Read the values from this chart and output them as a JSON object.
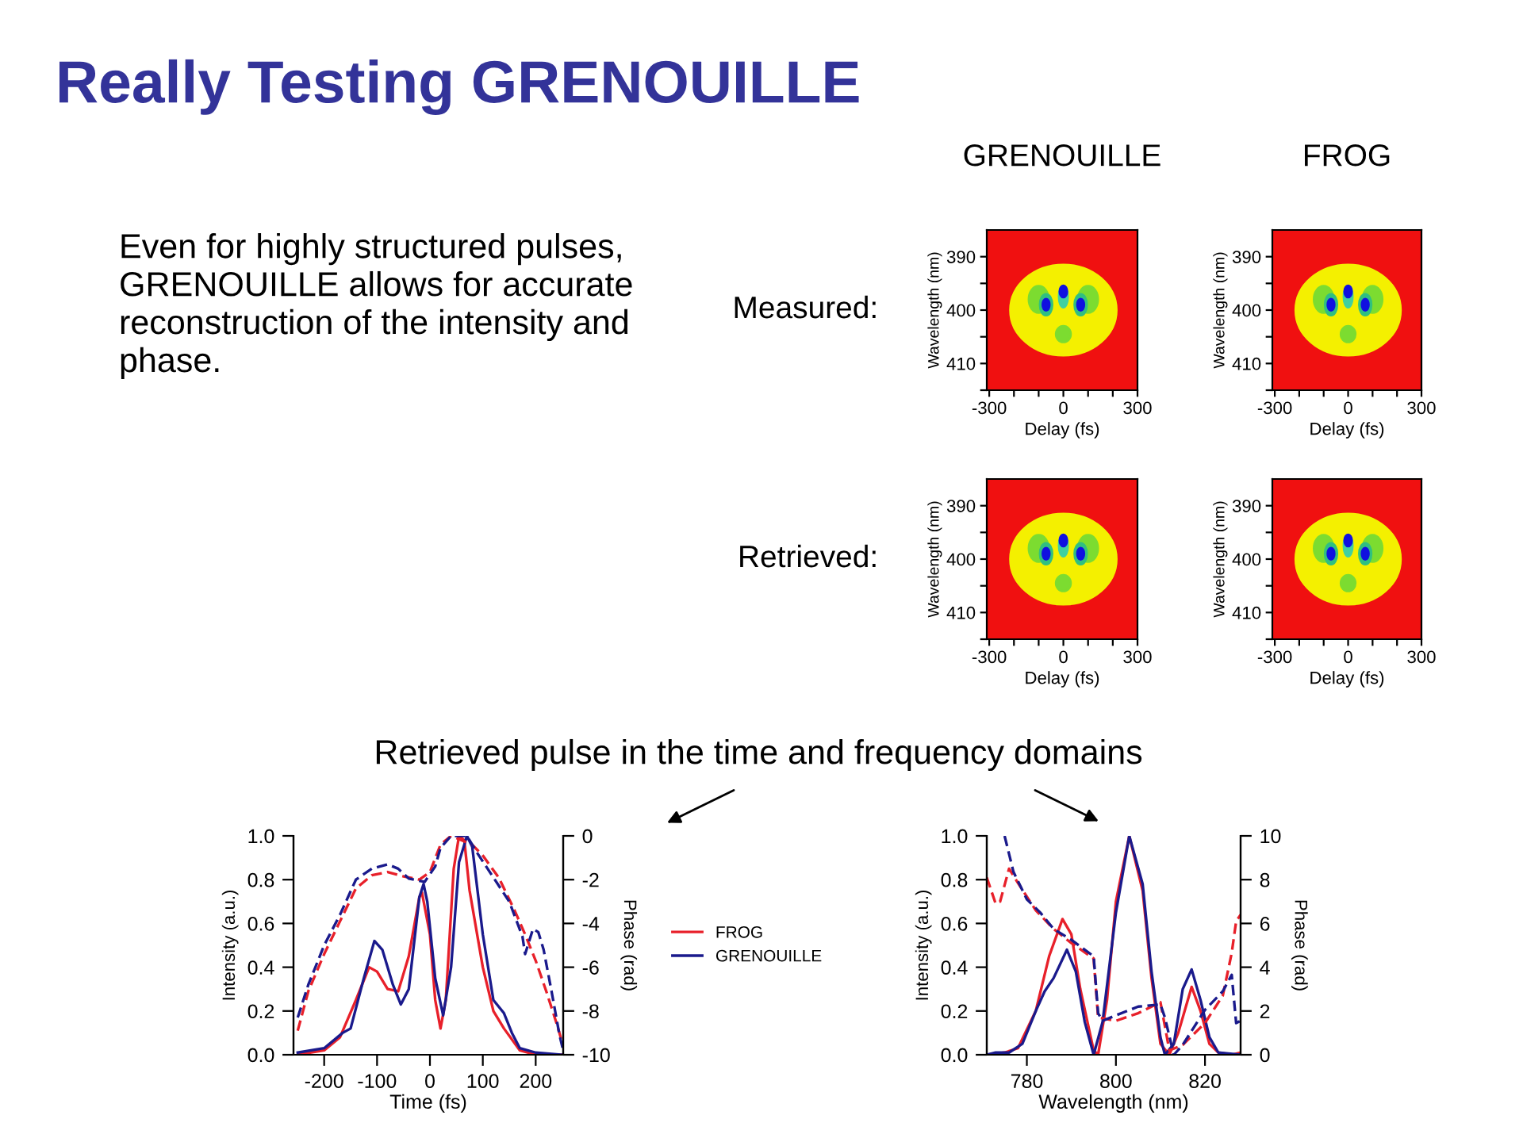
{
  "chart_data": [
    {
      "type": "other",
      "title": "Really Testing GRENOUILLE",
      "annotations": [
        "Even for highly structured pulses, GRENOUILLE allows for accurate reconstruction of the intensity and phase.",
        "Retrieved pulse in the time and frequency domains"
      ]
    },
    {
      "type": "heatmap",
      "title": "GRENOUILLE",
      "annotations": [
        "Measured:"
      ],
      "xlabel": "Delay (fs)",
      "ylabel": "Wavelength (nm)",
      "xlim": [
        -310,
        300
      ],
      "ylim": [
        415,
        385
      ],
      "xticks": [
        -300,
        {
          "value": -200,
          "label": null
        },
        {
          "value": -100,
          "label": null
        },
        0,
        {
          "value": 100,
          "label": null
        },
        {
          "value": 200,
          "label": null
        },
        300
      ],
      "yticks": [
        390,
        {
          "value": 395,
          "label": null
        },
        400,
        {
          "value": 405,
          "label": null
        },
        410,
        {
          "value": 415,
          "label": null
        }
      ]
    },
    {
      "type": "heatmap",
      "title": "FROG",
      "xlabel": "Delay (fs)",
      "ylabel": "Wavelength (nm)",
      "xlim": [
        -310,
        300
      ],
      "ylim": [
        415,
        385
      ],
      "xticks": [
        -300,
        {
          "value": -200,
          "label": null
        },
        {
          "value": -100,
          "label": null
        },
        0,
        {
          "value": 100,
          "label": null
        },
        {
          "value": 200,
          "label": null
        },
        300
      ],
      "yticks": [
        390,
        {
          "value": 395,
          "label": null
        },
        400,
        {
          "value": 405,
          "label": null
        },
        410,
        {
          "value": 415,
          "label": null
        }
      ]
    },
    {
      "type": "heatmap",
      "annotations": [
        "Retrieved:"
      ],
      "xlabel": "Delay (fs)",
      "ylabel": "Wavelength (nm)",
      "xlim": [
        -310,
        300
      ],
      "ylim": [
        415,
        385
      ],
      "xticks": [
        -300,
        {
          "value": -200,
          "label": null
        },
        {
          "value": -100,
          "label": null
        },
        0,
        {
          "value": 100,
          "label": null
        },
        {
          "value": 200,
          "label": null
        },
        300
      ],
      "yticks": [
        390,
        {
          "value": 395,
          "label": null
        },
        400,
        {
          "value": 405,
          "label": null
        },
        410,
        {
          "value": 415,
          "label": null
        }
      ]
    },
    {
      "type": "heatmap",
      "xlabel": "Delay (fs)",
      "ylabel": "Wavelength (nm)",
      "xlim": [
        -310,
        300
      ],
      "ylim": [
        415,
        385
      ],
      "xticks": [
        -300,
        {
          "value": -200,
          "label": null
        },
        {
          "value": -100,
          "label": null
        },
        0,
        {
          "value": 100,
          "label": null
        },
        {
          "value": 200,
          "label": null
        },
        300
      ],
      "yticks": [
        390,
        {
          "value": 395,
          "label": null
        },
        400,
        {
          "value": 405,
          "label": null
        },
        410,
        {
          "value": 415,
          "label": null
        }
      ]
    },
    {
      "type": "line",
      "xlabel": "Time (fs)",
      "ylabel": "Intensity (a.u.)",
      "y2label": "Phase (rad)",
      "xlim": [
        -258,
        252
      ],
      "xticks": [
        -200,
        -100,
        0,
        100,
        200
      ],
      "ylim": [
        0,
        1
      ],
      "yticks": [
        {
          "value": 0,
          "label": "0.0"
        },
        {
          "value": 0.2,
          "label": "0.2"
        },
        {
          "value": 0.4,
          "label": "0.4"
        },
        {
          "value": 0.6,
          "label": "0.6"
        },
        {
          "value": 0.8,
          "label": "0.8"
        },
        {
          "value": 1,
          "label": "1.0"
        }
      ],
      "y2lim": [
        -10,
        0
      ],
      "y2ticks": [
        -10,
        -8,
        -6,
        -4,
        -2,
        0
      ],
      "legend": "right",
      "series": [
        {
          "name": "FROG",
          "color": "#e8202a",
          "line_style": "solid",
          "x": [
            -250,
            -200,
            -170,
            -140,
            -115,
            -100,
            -80,
            -60,
            -40,
            -20,
            -15,
            0,
            10,
            20,
            30,
            45,
            55,
            65,
            75,
            100,
            120,
            140,
            170,
            200,
            250
          ],
          "values": [
            0.0,
            0.02,
            0.08,
            0.25,
            0.4,
            0.38,
            0.3,
            0.29,
            0.45,
            0.72,
            0.74,
            0.55,
            0.25,
            0.12,
            0.25,
            0.85,
            1.0,
            0.98,
            0.75,
            0.4,
            0.2,
            0.12,
            0.02,
            0.0,
            0.0
          ]
        },
        {
          "name": "GRENOUILLE",
          "color": "#1a1a8c",
          "line_style": "solid",
          "x": [
            -250,
            -200,
            -165,
            -150,
            -125,
            -105,
            -90,
            -70,
            -55,
            -40,
            -20,
            -12,
            -5,
            10,
            25,
            40,
            55,
            70,
            80,
            100,
            120,
            140,
            155,
            170,
            200,
            250
          ],
          "values": [
            0.01,
            0.03,
            0.1,
            0.12,
            0.35,
            0.52,
            0.48,
            0.32,
            0.23,
            0.3,
            0.72,
            0.78,
            0.7,
            0.35,
            0.18,
            0.4,
            0.88,
            1.0,
            0.95,
            0.55,
            0.25,
            0.19,
            0.1,
            0.03,
            0.01,
            0.0
          ]
        },
        {
          "color": "#e8202a",
          "line_style": "dashed",
          "axis": "y2",
          "x": [
            -250,
            -230,
            -200,
            -170,
            -140,
            -110,
            -80,
            -50,
            -20,
            0,
            20,
            40,
            80,
            100,
            130,
            160,
            180,
            200,
            220,
            240,
            252
          ],
          "values": [
            -8.9,
            -7.1,
            -5.4,
            -3.9,
            -2.4,
            -1.8,
            -1.65,
            -1.85,
            -2.0,
            -1.65,
            -0.4,
            0,
            -0.4,
            -0.9,
            -1.9,
            -3.4,
            -4.5,
            -5.7,
            -7.1,
            -8.6,
            -9.6
          ]
        },
        {
          "color": "#1a1a8c",
          "line_style": "dashed",
          "axis": "y2",
          "x": [
            -250,
            -230,
            -200,
            -170,
            -140,
            -110,
            -80,
            -60,
            -40,
            -10,
            10,
            20,
            40,
            70,
            90,
            120,
            150,
            175,
            180,
            195,
            205,
            215,
            230,
            245,
            252
          ],
          "values": [
            -8.3,
            -6.8,
            -5.0,
            -3.6,
            -2.0,
            -1.5,
            -1.3,
            -1.5,
            -1.95,
            -2.1,
            -1.4,
            -0.55,
            0,
            0,
            -0.8,
            -1.9,
            -3.0,
            -4.6,
            -5.4,
            -4.25,
            -4.4,
            -5.2,
            -7.1,
            -9.1,
            -9.8
          ]
        }
      ]
    },
    {
      "type": "line",
      "xlabel": "Wavelength (nm)",
      "ylabel": "Intensity (a.u.)",
      "y2label": "Phase (rad)",
      "xlim": [
        771,
        828
      ],
      "xticks": [
        780,
        800,
        820
      ],
      "ylim": [
        0,
        1
      ],
      "yticks": [
        {
          "value": 0,
          "label": "0.0"
        },
        {
          "value": 0.2,
          "label": "0.2"
        },
        {
          "value": 0.4,
          "label": "0.4"
        },
        {
          "value": 0.6,
          "label": "0.6"
        },
        {
          "value": 0.8,
          "label": "0.8"
        },
        {
          "value": 1,
          "label": "1.0"
        }
      ],
      "y2lim": [
        0,
        10
      ],
      "y2ticks": [
        0,
        2,
        4,
        6,
        8,
        10
      ],
      "series": [
        {
          "color": "#e8202a",
          "line_style": "solid",
          "x": [
            771,
            775,
            778,
            782,
            785,
            788,
            790,
            792,
            795,
            796,
            798,
            800,
            803,
            806,
            808,
            810,
            812,
            814,
            817,
            819,
            821,
            823,
            826,
            828
          ],
          "values": [
            0.0,
            0.01,
            0.03,
            0.2,
            0.45,
            0.62,
            0.55,
            0.3,
            0.02,
            0.0,
            0.25,
            0.7,
            1.0,
            0.75,
            0.35,
            0.05,
            0.0,
            0.1,
            0.31,
            0.2,
            0.05,
            0.01,
            0.0,
            0.01
          ]
        },
        {
          "color": "#1a1a8c",
          "line_style": "solid",
          "x": [
            771,
            773,
            776,
            779,
            782,
            784,
            786,
            789,
            791,
            793,
            795,
            797,
            800,
            803,
            806,
            808,
            810,
            811,
            813,
            815,
            817,
            819,
            821,
            823,
            828
          ],
          "values": [
            0.0,
            0.01,
            0.01,
            0.05,
            0.2,
            0.29,
            0.35,
            0.48,
            0.38,
            0.15,
            0.0,
            0.15,
            0.65,
            1.0,
            0.78,
            0.38,
            0.08,
            0.0,
            0.05,
            0.3,
            0.39,
            0.25,
            0.08,
            0.01,
            0.0
          ]
        },
        {
          "color": "#e8202a",
          "line_style": "dashed",
          "axis": "y2",
          "x": [
            771,
            773,
            774,
            776,
            778,
            782,
            786,
            790,
            795,
            796,
            800,
            805,
            810,
            812,
            815,
            820,
            824,
            826,
            827,
            828
          ],
          "values": [
            8.1,
            6.9,
            7.0,
            8.5,
            7.85,
            6.6,
            5.75,
            5.1,
            4.4,
            1.7,
            1.55,
            1.9,
            2.4,
            0.2,
            0.45,
            1.45,
            2.7,
            4.65,
            6.1,
            6.4
          ]
        },
        {
          "color": "#1a1a8c",
          "line_style": "dashed",
          "axis": "y2",
          "x": [
            775,
            777,
            780,
            783,
            786,
            790,
            795,
            796,
            797,
            800,
            805,
            810,
            811,
            813,
            815,
            820,
            824,
            826,
            827,
            828
          ],
          "values": [
            10,
            8.35,
            7.1,
            6.5,
            5.75,
            5.25,
            4.5,
            1.9,
            1.55,
            1.8,
            2.2,
            2.3,
            1.7,
            0,
            0.45,
            2.05,
            2.9,
            3.65,
            1.45,
            1.55
          ]
        }
      ]
    }
  ]
}
